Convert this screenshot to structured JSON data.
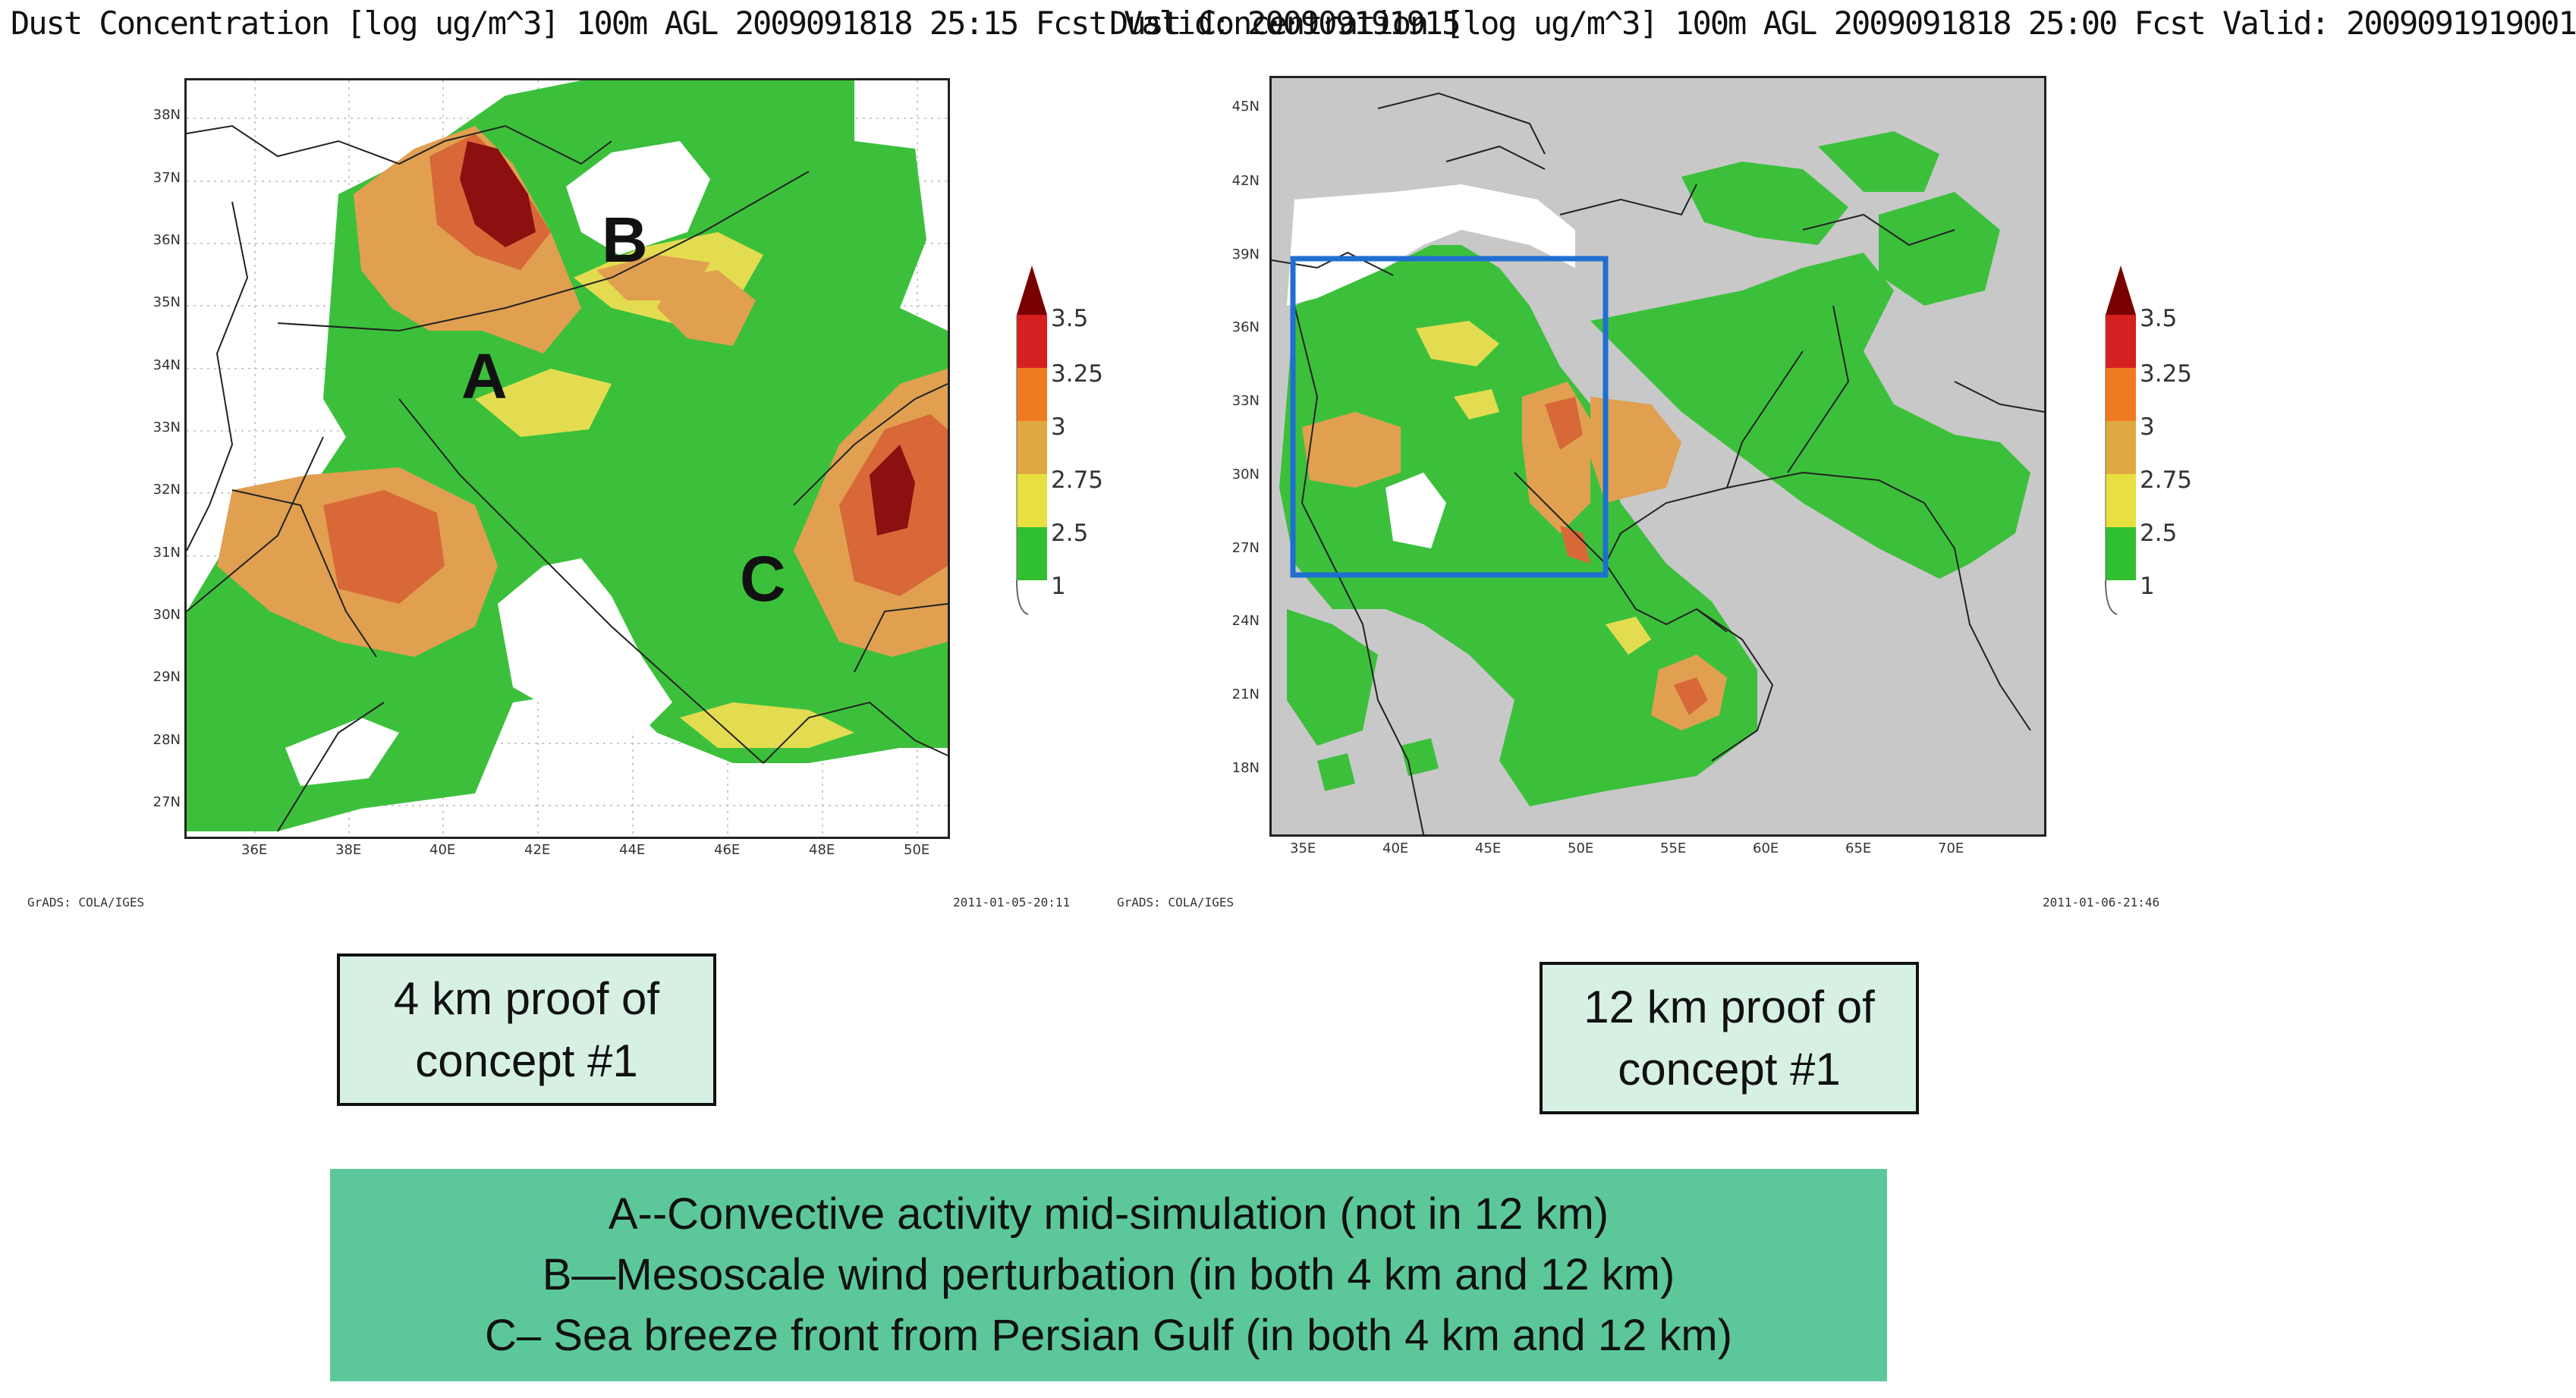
{
  "left_panel": {
    "title": "Dust Concentration [log ug/m^3] 100m AGL 2009091818 25:15 Fcst Valid: 200909191915",
    "y_ticks": [
      "38N",
      "37N",
      "36N",
      "35N",
      "34N",
      "33N",
      "32N",
      "31N",
      "30N",
      "29N",
      "28N",
      "27N"
    ],
    "x_ticks": [
      "36E",
      "38E",
      "40E",
      "42E",
      "44E",
      "46E",
      "48E",
      "50E"
    ],
    "annotations": [
      "A",
      "B",
      "C"
    ],
    "footer_left": "GrADS: COLA/IGES",
    "footer_right": "2011-01-05-20:11"
  },
  "right_panel": {
    "title": "Dust Concentration [log ug/m^3] 100m AGL 2009091818 25:00 Fcst Valid: 2009091919001",
    "y_ticks": [
      "45N",
      "42N",
      "39N",
      "36N",
      "33N",
      "30N",
      "27N",
      "24N",
      "21N",
      "18N"
    ],
    "x_ticks": [
      "35E",
      "40E",
      "45E",
      "50E",
      "55E",
      "60E",
      "65E",
      "70E"
    ],
    "footer_left": "GrADS: COLA/IGES",
    "footer_right": "2011-01-06-21:46",
    "box_color": "#1f6fd1"
  },
  "colorbar": {
    "levels": [
      "3.5",
      "3.25",
      "3",
      "2.75",
      "2.5",
      "1"
    ],
    "colors": [
      "#7a0000",
      "#d42020",
      "#f07a20",
      "#e0a840",
      "#e8e040",
      "#30c030"
    ]
  },
  "colors": {
    "land": "#ffffff",
    "grey_bg": "#c8c8c8",
    "green": "#3cc03c",
    "yellow": "#e4dc50",
    "orange": "#e0a050",
    "red_orange": "#d86838",
    "dark_red": "#8c1010"
  },
  "callouts": {
    "left_line1": "4 km proof of",
    "left_line2": "concept #1",
    "right_line1": "12 km proof of",
    "right_line2": "concept #1"
  },
  "summary": {
    "line1": "A--Convective activity mid-simulation (not in 12 km)",
    "line2": "B—Mesoscale wind perturbation (in both 4 km and 12 km)",
    "line3": "C– Sea breeze front from Persian Gulf (in both 4 km and 12 km)"
  }
}
